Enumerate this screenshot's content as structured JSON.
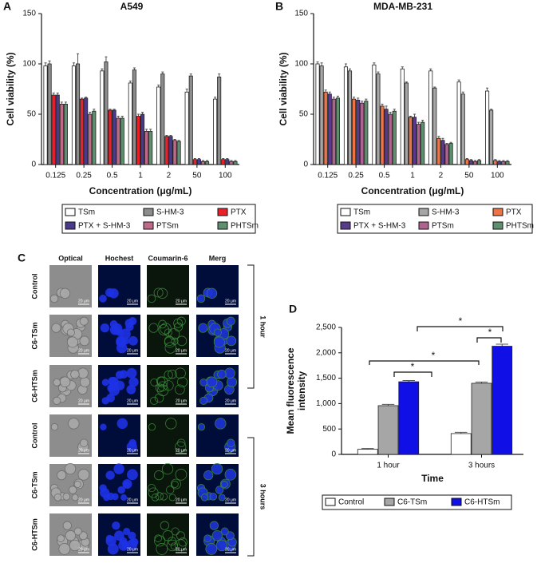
{
  "chart_data": [
    {
      "type": "bar",
      "panel_label": "A",
      "title": "A549",
      "xlabel": "Concentration (μg/mL)",
      "ylabel": "Cell viability (%)",
      "categories": [
        "0.125",
        "0.25",
        "0.5",
        "1",
        "2",
        "50",
        "100"
      ],
      "series": [
        {
          "name": "TSm",
          "color": "#ffffff",
          "values": [
            98,
            98,
            93,
            81,
            77,
            72,
            65
          ],
          "errors": [
            3,
            3,
            2,
            2,
            2,
            3,
            2
          ]
        },
        {
          "name": "S-HM-3",
          "color": "#8c8c8c",
          "values": [
            100,
            100,
            102,
            94,
            90,
            88,
            87
          ],
          "errors": [
            3,
            10,
            5,
            2,
            2,
            2,
            3
          ]
        },
        {
          "name": "PTX",
          "color": "#e8212b",
          "values": [
            69,
            65,
            54,
            48,
            28,
            5,
            5
          ],
          "errors": [
            2,
            1,
            1,
            2,
            1,
            1,
            1
          ]
        },
        {
          "name": "PTX + S-HM-3",
          "color": "#4b3a8c",
          "values": [
            69,
            66,
            54,
            50,
            28,
            5,
            5
          ],
          "errors": [
            2,
            1,
            1,
            2,
            1,
            1,
            1
          ]
        },
        {
          "name": "PTSm",
          "color": "#c06a8a",
          "values": [
            60,
            50,
            46,
            33,
            24,
            3,
            3
          ],
          "errors": [
            2,
            2,
            2,
            2,
            1,
            1,
            1
          ]
        },
        {
          "name": "PHTSm",
          "color": "#5e8f6e",
          "values": [
            60,
            53,
            46,
            33,
            23,
            3,
            3
          ],
          "errors": [
            2,
            2,
            2,
            2,
            1,
            1,
            1
          ]
        }
      ],
      "ylim": [
        0,
        150
      ],
      "yticks": [
        0,
        50,
        100,
        150
      ],
      "legend": "below"
    },
    {
      "type": "bar",
      "panel_label": "B",
      "title": "MDA-MB-231",
      "xlabel": "Concentration (μg/mL)",
      "ylabel": "Cell viability (%)",
      "categories": [
        "0.125",
        "0.25",
        "0.5",
        "1",
        "2",
        "50",
        "100"
      ],
      "series": [
        {
          "name": "TSm",
          "color": "#ffffff",
          "values": [
            100,
            97,
            99,
            95,
            93,
            82,
            73
          ],
          "errors": [
            2,
            3,
            2,
            2,
            2,
            2,
            3
          ]
        },
        {
          "name": "S-HM-3",
          "color": "#a6a6a6",
          "values": [
            98,
            93,
            90,
            81,
            76,
            70,
            54
          ],
          "errors": [
            3,
            2,
            2,
            1,
            1,
            2,
            1
          ]
        },
        {
          "name": "PTX",
          "color": "#ec7447",
          "values": [
            72,
            65,
            58,
            47,
            26,
            5,
            4
          ],
          "errors": [
            2,
            2,
            2,
            1,
            2,
            1,
            1
          ]
        },
        {
          "name": "PTX + S-HM-3",
          "color": "#5a3a8c",
          "values": [
            70,
            64,
            55,
            47,
            24,
            4,
            3
          ],
          "errors": [
            2,
            2,
            3,
            3,
            2,
            1,
            1
          ]
        },
        {
          "name": "PTSm",
          "color": "#b06391",
          "values": [
            65,
            61,
            50,
            40,
            20,
            3,
            3
          ],
          "errors": [
            2,
            2,
            2,
            2,
            1,
            1,
            1
          ]
        },
        {
          "name": "PHTSm",
          "color": "#5e8f6e",
          "values": [
            66,
            63,
            53,
            42,
            21,
            4,
            3
          ],
          "errors": [
            2,
            2,
            2,
            2,
            1,
            1,
            1
          ]
        }
      ],
      "ylim": [
        0,
        150
      ],
      "yticks": [
        0,
        50,
        100,
        150
      ],
      "legend": "below"
    },
    {
      "type": "bar",
      "panel_label": "D",
      "xlabel": "Time",
      "ylabel": "Mean fluorescence intensity",
      "categories": [
        "1 hour",
        "3 hours"
      ],
      "series": [
        {
          "name": "Control",
          "color": "#ffffff",
          "values": [
            100,
            410
          ],
          "errors": [
            15,
            25
          ]
        },
        {
          "name": "C6-TSm",
          "color": "#a6a6a6",
          "values": [
            960,
            1400
          ],
          "errors": [
            25,
            25
          ]
        },
        {
          "name": "C6-HTSm",
          "color": "#1010e6",
          "values": [
            1430,
            2130
          ],
          "errors": [
            25,
            40
          ]
        }
      ],
      "ylim": [
        0,
        2500
      ],
      "yticks": [
        0,
        500,
        {
          "value": 1000,
          "label": "1,000"
        },
        {
          "value": 1500,
          "label": "1,500"
        },
        {
          "value": 2000,
          "label": "2,000"
        },
        {
          "value": 2500,
          "label": "2,500"
        }
      ],
      "annotations": [
        "*",
        "*",
        "*",
        "*"
      ],
      "legend": "below"
    }
  ],
  "panel_c": {
    "label": "C",
    "columns": [
      "Optical",
      "Hochest",
      "Coumarin-6",
      "Merg"
    ],
    "rows": [
      "Control",
      "C6-TSm",
      "C6-HTSm",
      "Control",
      "C6-TSm",
      "C6-HTSm"
    ],
    "groups": [
      "1 hour",
      "3 hours"
    ],
    "scale_bar": "20 μm"
  }
}
